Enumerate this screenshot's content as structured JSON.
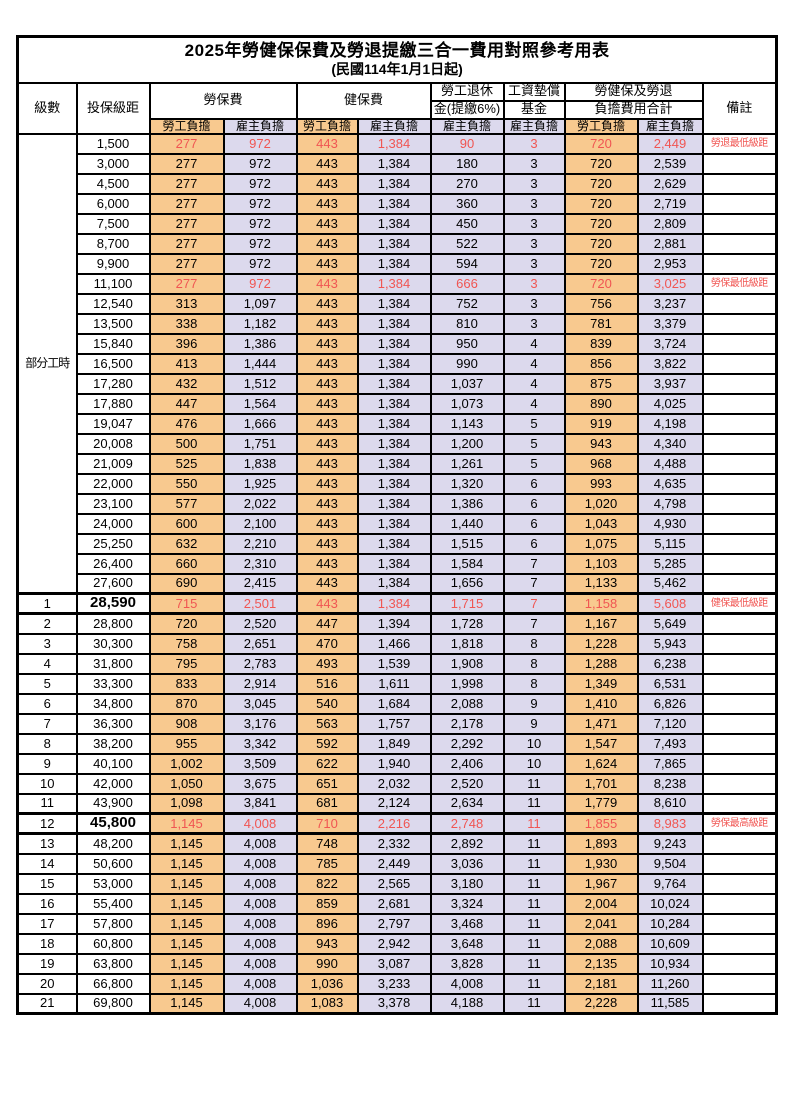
{
  "title": "2025年勞健保保費及勞退提繳三合一費用對照參考用表",
  "subtitle": "(民國114年1月1日起)",
  "colors": {
    "employee_bg": "#f8c98f",
    "employer_bg": "#dcd9ed",
    "highlight_red": "#f05552",
    "border": "#000000"
  },
  "header": {
    "level": "級數",
    "bracket": "投保級距",
    "labor_ins": "勞保費",
    "health_ins": "健保費",
    "pension_line1": "勞工退休",
    "pension_line2": "金(提繳6%)",
    "wage_fund_line1": "工資墊償",
    "wage_fund_line2": "基金",
    "total_line1": "勞健保及勞退",
    "total_line2": "負擔費用合計",
    "notes": "備註",
    "employee": "勞工負擔",
    "employer": "雇主負擔"
  },
  "part_time_label": "部分工時",
  "part_time_rowspan": 23,
  "rows": [
    {
      "level": "",
      "bracket": "1,500",
      "li_emp": "277",
      "li_er": "972",
      "hi_emp": "443",
      "hi_er": "1,384",
      "pension": "90",
      "fund": "3",
      "tot_emp": "720",
      "tot_er": "2,449",
      "note": "勞退最低級距",
      "highlight": true,
      "big": false,
      "section": false
    },
    {
      "level": "",
      "bracket": "3,000",
      "li_emp": "277",
      "li_er": "972",
      "hi_emp": "443",
      "hi_er": "1,384",
      "pension": "180",
      "fund": "3",
      "tot_emp": "720",
      "tot_er": "2,539",
      "note": "",
      "highlight": false,
      "big": false,
      "section": false
    },
    {
      "level": "",
      "bracket": "4,500",
      "li_emp": "277",
      "li_er": "972",
      "hi_emp": "443",
      "hi_er": "1,384",
      "pension": "270",
      "fund": "3",
      "tot_emp": "720",
      "tot_er": "2,629",
      "note": "",
      "highlight": false,
      "big": false,
      "section": false
    },
    {
      "level": "",
      "bracket": "6,000",
      "li_emp": "277",
      "li_er": "972",
      "hi_emp": "443",
      "hi_er": "1,384",
      "pension": "360",
      "fund": "3",
      "tot_emp": "720",
      "tot_er": "2,719",
      "note": "",
      "highlight": false,
      "big": false,
      "section": false
    },
    {
      "level": "",
      "bracket": "7,500",
      "li_emp": "277",
      "li_er": "972",
      "hi_emp": "443",
      "hi_er": "1,384",
      "pension": "450",
      "fund": "3",
      "tot_emp": "720",
      "tot_er": "2,809",
      "note": "",
      "highlight": false,
      "big": false,
      "section": false
    },
    {
      "level": "",
      "bracket": "8,700",
      "li_emp": "277",
      "li_er": "972",
      "hi_emp": "443",
      "hi_er": "1,384",
      "pension": "522",
      "fund": "3",
      "tot_emp": "720",
      "tot_er": "2,881",
      "note": "",
      "highlight": false,
      "big": false,
      "section": false
    },
    {
      "level": "",
      "bracket": "9,900",
      "li_emp": "277",
      "li_er": "972",
      "hi_emp": "443",
      "hi_er": "1,384",
      "pension": "594",
      "fund": "3",
      "tot_emp": "720",
      "tot_er": "2,953",
      "note": "",
      "highlight": false,
      "big": false,
      "section": false
    },
    {
      "level": "",
      "bracket": "11,100",
      "li_emp": "277",
      "li_er": "972",
      "hi_emp": "443",
      "hi_er": "1,384",
      "pension": "666",
      "fund": "3",
      "tot_emp": "720",
      "tot_er": "3,025",
      "note": "勞保最低級距",
      "highlight": true,
      "big": false,
      "section": false
    },
    {
      "level": "",
      "bracket": "12,540",
      "li_emp": "313",
      "li_er": "1,097",
      "hi_emp": "443",
      "hi_er": "1,384",
      "pension": "752",
      "fund": "3",
      "tot_emp": "756",
      "tot_er": "3,237",
      "note": "",
      "highlight": false,
      "big": false,
      "section": false
    },
    {
      "level": "",
      "bracket": "13,500",
      "li_emp": "338",
      "li_er": "1,182",
      "hi_emp": "443",
      "hi_er": "1,384",
      "pension": "810",
      "fund": "3",
      "tot_emp": "781",
      "tot_er": "3,379",
      "note": "",
      "highlight": false,
      "big": false,
      "section": false
    },
    {
      "level": "",
      "bracket": "15,840",
      "li_emp": "396",
      "li_er": "1,386",
      "hi_emp": "443",
      "hi_er": "1,384",
      "pension": "950",
      "fund": "4",
      "tot_emp": "839",
      "tot_er": "3,724",
      "note": "",
      "highlight": false,
      "big": false,
      "section": false
    },
    {
      "level": "",
      "bracket": "16,500",
      "li_emp": "413",
      "li_er": "1,444",
      "hi_emp": "443",
      "hi_er": "1,384",
      "pension": "990",
      "fund": "4",
      "tot_emp": "856",
      "tot_er": "3,822",
      "note": "",
      "highlight": false,
      "big": false,
      "section": false
    },
    {
      "level": "",
      "bracket": "17,280",
      "li_emp": "432",
      "li_er": "1,512",
      "hi_emp": "443",
      "hi_er": "1,384",
      "pension": "1,037",
      "fund": "4",
      "tot_emp": "875",
      "tot_er": "3,937",
      "note": "",
      "highlight": false,
      "big": false,
      "section": false
    },
    {
      "level": "",
      "bracket": "17,880",
      "li_emp": "447",
      "li_er": "1,564",
      "hi_emp": "443",
      "hi_er": "1,384",
      "pension": "1,073",
      "fund": "4",
      "tot_emp": "890",
      "tot_er": "4,025",
      "note": "",
      "highlight": false,
      "big": false,
      "section": false
    },
    {
      "level": "",
      "bracket": "19,047",
      "li_emp": "476",
      "li_er": "1,666",
      "hi_emp": "443",
      "hi_er": "1,384",
      "pension": "1,143",
      "fund": "5",
      "tot_emp": "919",
      "tot_er": "4,198",
      "note": "",
      "highlight": false,
      "big": false,
      "section": false
    },
    {
      "level": "",
      "bracket": "20,008",
      "li_emp": "500",
      "li_er": "1,751",
      "hi_emp": "443",
      "hi_er": "1,384",
      "pension": "1,200",
      "fund": "5",
      "tot_emp": "943",
      "tot_er": "4,340",
      "note": "",
      "highlight": false,
      "big": false,
      "section": false
    },
    {
      "level": "",
      "bracket": "21,009",
      "li_emp": "525",
      "li_er": "1,838",
      "hi_emp": "443",
      "hi_er": "1,384",
      "pension": "1,261",
      "fund": "5",
      "tot_emp": "968",
      "tot_er": "4,488",
      "note": "",
      "highlight": false,
      "big": false,
      "section": false
    },
    {
      "level": "",
      "bracket": "22,000",
      "li_emp": "550",
      "li_er": "1,925",
      "hi_emp": "443",
      "hi_er": "1,384",
      "pension": "1,320",
      "fund": "6",
      "tot_emp": "993",
      "tot_er": "4,635",
      "note": "",
      "highlight": false,
      "big": false,
      "section": false
    },
    {
      "level": "",
      "bracket": "23,100",
      "li_emp": "577",
      "li_er": "2,022",
      "hi_emp": "443",
      "hi_er": "1,384",
      "pension": "1,386",
      "fund": "6",
      "tot_emp": "1,020",
      "tot_er": "4,798",
      "note": "",
      "highlight": false,
      "big": false,
      "section": false
    },
    {
      "level": "",
      "bracket": "24,000",
      "li_emp": "600",
      "li_er": "2,100",
      "hi_emp": "443",
      "hi_er": "1,384",
      "pension": "1,440",
      "fund": "6",
      "tot_emp": "1,043",
      "tot_er": "4,930",
      "note": "",
      "highlight": false,
      "big": false,
      "section": false
    },
    {
      "level": "",
      "bracket": "25,250",
      "li_emp": "632",
      "li_er": "2,210",
      "hi_emp": "443",
      "hi_er": "1,384",
      "pension": "1,515",
      "fund": "6",
      "tot_emp": "1,075",
      "tot_er": "5,115",
      "note": "",
      "highlight": false,
      "big": false,
      "section": false
    },
    {
      "level": "",
      "bracket": "26,400",
      "li_emp": "660",
      "li_er": "2,310",
      "hi_emp": "443",
      "hi_er": "1,384",
      "pension": "1,584",
      "fund": "7",
      "tot_emp": "1,103",
      "tot_er": "5,285",
      "note": "",
      "highlight": false,
      "big": false,
      "section": false
    },
    {
      "level": "",
      "bracket": "27,600",
      "li_emp": "690",
      "li_er": "2,415",
      "hi_emp": "443",
      "hi_er": "1,384",
      "pension": "1,656",
      "fund": "7",
      "tot_emp": "1,133",
      "tot_er": "5,462",
      "note": "",
      "highlight": false,
      "big": false,
      "section": false
    },
    {
      "level": "1",
      "bracket": "28,590",
      "li_emp": "715",
      "li_er": "2,501",
      "hi_emp": "443",
      "hi_er": "1,384",
      "pension": "1,715",
      "fund": "7",
      "tot_emp": "1,158",
      "tot_er": "5,608",
      "note": "健保最低級距",
      "highlight": true,
      "big": true,
      "section": true
    },
    {
      "level": "2",
      "bracket": "28,800",
      "li_emp": "720",
      "li_er": "2,520",
      "hi_emp": "447",
      "hi_er": "1,394",
      "pension": "1,728",
      "fund": "7",
      "tot_emp": "1,167",
      "tot_er": "5,649",
      "note": "",
      "highlight": false,
      "big": false,
      "section": false
    },
    {
      "level": "3",
      "bracket": "30,300",
      "li_emp": "758",
      "li_er": "2,651",
      "hi_emp": "470",
      "hi_er": "1,466",
      "pension": "1,818",
      "fund": "8",
      "tot_emp": "1,228",
      "tot_er": "5,943",
      "note": "",
      "highlight": false,
      "big": false,
      "section": false
    },
    {
      "level": "4",
      "bracket": "31,800",
      "li_emp": "795",
      "li_er": "2,783",
      "hi_emp": "493",
      "hi_er": "1,539",
      "pension": "1,908",
      "fund": "8",
      "tot_emp": "1,288",
      "tot_er": "6,238",
      "note": "",
      "highlight": false,
      "big": false,
      "section": false
    },
    {
      "level": "5",
      "bracket": "33,300",
      "li_emp": "833",
      "li_er": "2,914",
      "hi_emp": "516",
      "hi_er": "1,611",
      "pension": "1,998",
      "fund": "8",
      "tot_emp": "1,349",
      "tot_er": "6,531",
      "note": "",
      "highlight": false,
      "big": false,
      "section": false
    },
    {
      "level": "6",
      "bracket": "34,800",
      "li_emp": "870",
      "li_er": "3,045",
      "hi_emp": "540",
      "hi_er": "1,684",
      "pension": "2,088",
      "fund": "9",
      "tot_emp": "1,410",
      "tot_er": "6,826",
      "note": "",
      "highlight": false,
      "big": false,
      "section": false
    },
    {
      "level": "7",
      "bracket": "36,300",
      "li_emp": "908",
      "li_er": "3,176",
      "hi_emp": "563",
      "hi_er": "1,757",
      "pension": "2,178",
      "fund": "9",
      "tot_emp": "1,471",
      "tot_er": "7,120",
      "note": "",
      "highlight": false,
      "big": false,
      "section": false
    },
    {
      "level": "8",
      "bracket": "38,200",
      "li_emp": "955",
      "li_er": "3,342",
      "hi_emp": "592",
      "hi_er": "1,849",
      "pension": "2,292",
      "fund": "10",
      "tot_emp": "1,547",
      "tot_er": "7,493",
      "note": "",
      "highlight": false,
      "big": false,
      "section": false
    },
    {
      "level": "9",
      "bracket": "40,100",
      "li_emp": "1,002",
      "li_er": "3,509",
      "hi_emp": "622",
      "hi_er": "1,940",
      "pension": "2,406",
      "fund": "10",
      "tot_emp": "1,624",
      "tot_er": "7,865",
      "note": "",
      "highlight": false,
      "big": false,
      "section": false
    },
    {
      "level": "10",
      "bracket": "42,000",
      "li_emp": "1,050",
      "li_er": "3,675",
      "hi_emp": "651",
      "hi_er": "2,032",
      "pension": "2,520",
      "fund": "11",
      "tot_emp": "1,701",
      "tot_er": "8,238",
      "note": "",
      "highlight": false,
      "big": false,
      "section": false
    },
    {
      "level": "11",
      "bracket": "43,900",
      "li_emp": "1,098",
      "li_er": "3,841",
      "hi_emp": "681",
      "hi_er": "2,124",
      "pension": "2,634",
      "fund": "11",
      "tot_emp": "1,779",
      "tot_er": "8,610",
      "note": "",
      "highlight": false,
      "big": false,
      "section": false
    },
    {
      "level": "12",
      "bracket": "45,800",
      "li_emp": "1,145",
      "li_er": "4,008",
      "hi_emp": "710",
      "hi_er": "2,216",
      "pension": "2,748",
      "fund": "11",
      "tot_emp": "1,855",
      "tot_er": "8,983",
      "note": "勞保最高級距",
      "highlight": true,
      "big": true,
      "section": true
    },
    {
      "level": "13",
      "bracket": "48,200",
      "li_emp": "1,145",
      "li_er": "4,008",
      "hi_emp": "748",
      "hi_er": "2,332",
      "pension": "2,892",
      "fund": "11",
      "tot_emp": "1,893",
      "tot_er": "9,243",
      "note": "",
      "highlight": false,
      "big": false,
      "section": false
    },
    {
      "level": "14",
      "bracket": "50,600",
      "li_emp": "1,145",
      "li_er": "4,008",
      "hi_emp": "785",
      "hi_er": "2,449",
      "pension": "3,036",
      "fund": "11",
      "tot_emp": "1,930",
      "tot_er": "9,504",
      "note": "",
      "highlight": false,
      "big": false,
      "section": false
    },
    {
      "level": "15",
      "bracket": "53,000",
      "li_emp": "1,145",
      "li_er": "4,008",
      "hi_emp": "822",
      "hi_er": "2,565",
      "pension": "3,180",
      "fund": "11",
      "tot_emp": "1,967",
      "tot_er": "9,764",
      "note": "",
      "highlight": false,
      "big": false,
      "section": false
    },
    {
      "level": "16",
      "bracket": "55,400",
      "li_emp": "1,145",
      "li_er": "4,008",
      "hi_emp": "859",
      "hi_er": "2,681",
      "pension": "3,324",
      "fund": "11",
      "tot_emp": "2,004",
      "tot_er": "10,024",
      "note": "",
      "highlight": false,
      "big": false,
      "section": false
    },
    {
      "level": "17",
      "bracket": "57,800",
      "li_emp": "1,145",
      "li_er": "4,008",
      "hi_emp": "896",
      "hi_er": "2,797",
      "pension": "3,468",
      "fund": "11",
      "tot_emp": "2,041",
      "tot_er": "10,284",
      "note": "",
      "highlight": false,
      "big": false,
      "section": false
    },
    {
      "level": "18",
      "bracket": "60,800",
      "li_emp": "1,145",
      "li_er": "4,008",
      "hi_emp": "943",
      "hi_er": "2,942",
      "pension": "3,648",
      "fund": "11",
      "tot_emp": "2,088",
      "tot_er": "10,609",
      "note": "",
      "highlight": false,
      "big": false,
      "section": false
    },
    {
      "level": "19",
      "bracket": "63,800",
      "li_emp": "1,145",
      "li_er": "4,008",
      "hi_emp": "990",
      "hi_er": "3,087",
      "pension": "3,828",
      "fund": "11",
      "tot_emp": "2,135",
      "tot_er": "10,934",
      "note": "",
      "highlight": false,
      "big": false,
      "section": false
    },
    {
      "level": "20",
      "bracket": "66,800",
      "li_emp": "1,145",
      "li_er": "4,008",
      "hi_emp": "1,036",
      "hi_er": "3,233",
      "pension": "4,008",
      "fund": "11",
      "tot_emp": "2,181",
      "tot_er": "11,260",
      "note": "",
      "highlight": false,
      "big": false,
      "section": false
    },
    {
      "level": "21",
      "bracket": "69,800",
      "li_emp": "1,145",
      "li_er": "4,008",
      "hi_emp": "1,083",
      "hi_er": "3,378",
      "pension": "4,188",
      "fund": "11",
      "tot_emp": "2,228",
      "tot_er": "11,585",
      "note": "",
      "highlight": false,
      "big": false,
      "section": false
    }
  ]
}
